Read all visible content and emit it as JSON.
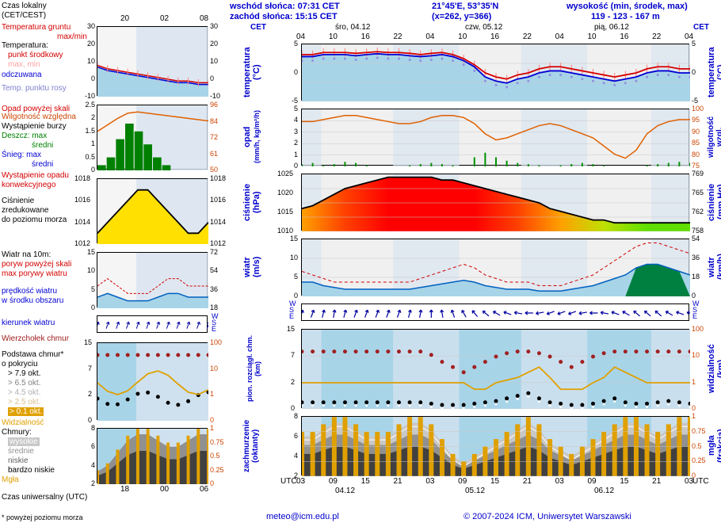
{
  "header": {
    "sunrise": "wschód słońca: 07:31 CET",
    "sunset": "zachód słońca: 15:15 CET",
    "coords": "21°45'E, 53°35'N",
    "grid": "(x=262,  y=366)",
    "elevation_label": "wysokość (min, środek, max)",
    "elevation": "119 - 123 - 167 m",
    "tz_left": "CET",
    "tz_right": "CET"
  },
  "days": {
    "d1": "śro, 04.12",
    "d2": "czw, 05.12",
    "d3": "pią, 06.12"
  },
  "day_shorts": {
    "d1": "04.12",
    "d2": "05.12",
    "d3": "06.12"
  },
  "time_ticks_main": [
    "04",
    "10",
    "16",
    "22",
    "04",
    "10",
    "16",
    "22",
    "04",
    "10",
    "16",
    "22",
    "04"
  ],
  "time_ticks_utc": [
    "03",
    "09",
    "15",
    "21",
    "03",
    "09",
    "15",
    "21",
    "03",
    "09",
    "15",
    "21",
    "03"
  ],
  "legend": {
    "czas_lokalny": "Czas lokalny",
    "cet_cest": "(CET/CEST)",
    "temp_gruntu": "Temperatura gruntu",
    "maxmin": "max/min",
    "temperatura": "Temperatura:",
    "punkt_srodkowy": "punkt środkowy",
    "max_min": "max, min",
    "odczuwana": "odczuwana",
    "temp_rosy": "Temp. punktu rosy",
    "opad_skali": "Opad powyżej skali",
    "wilgotnosc": "Wilgotność względna",
    "burza": "Wystąpienie burzy",
    "deszcz": "Deszcz:  max",
    "deszcz_sr": "średni",
    "snieg": "Śnieg:   max",
    "snieg_sr": "średni",
    "konwekcja": "Wystąpienie opadu",
    "konwekcja2": "konwekcyjnego",
    "cisnienie": "Ciśnienie",
    "zred": "zredukowane",
    "do_poziomu": "do poziomu morza",
    "wiatr10m": "Wiatr na 10m:",
    "poryw_skali": "poryw powyżej skali",
    "max_porywy": "max porywy wiatru",
    "predkosc": "prędkość wiatru",
    "w_srodku": "w środku obszaru",
    "kierunek": "kierunek wiatru",
    "wierzcholek": "Wierzchołek chmur",
    "podstawa": "Podstawa chmur*",
    "o_pokryciu": "o pokryciu",
    "p79": "> 7.9 okt.",
    "p65": "> 6.5 okt.",
    "p45": "> 4.5 okt.",
    "p25": "> 2.5 okt.",
    "p01": "> 0.1 okt.",
    "widzialnosc": "Widzialność",
    "chmury": "Chmury:",
    "wysokie": "wysokie",
    "srednie": "średnie",
    "niskie": "niskie",
    "bardzo_niskie": "bardzo niskie",
    "mgla": "Mgła",
    "czas_utc": "Czas uniwersalny (UTC)",
    "utc": "UTC",
    "utc2": "UTC",
    "note": "* powyżej poziomu morza"
  },
  "vert_labels": {
    "temp": "temperatura",
    "temp_unit": "(°C)",
    "opad": "opad",
    "opad_unit": "(mm/h, kg/m²/h)",
    "cisn": "ciśnienie",
    "cisn_unit": "(hPa)",
    "wiatr": "wiatr",
    "wiatr_unit": "(m/s)",
    "chm": "pion. rozciągł. chm.",
    "chm_unit": "(km)",
    "okt": "zachmurzenie",
    "okt_unit": "(oktanty)",
    "wilg": "wilgotność wzgl.",
    "wilg_unit": "(%)",
    "cisn2": "ciśnienie",
    "cisn2_unit": "(mm Hg)",
    "wiatr2": "wiatr",
    "wiatr2_unit": "(km/h)",
    "widz": "widzialność",
    "widz_unit": "(km)",
    "mgla": "mgła",
    "mgla_unit": "(frakcja)"
  },
  "temp_panel": {
    "yticks": [
      5,
      0,
      -5
    ],
    "top_line": [
      3.5,
      3.5,
      4,
      4,
      4,
      3.8,
      4,
      4.2,
      4,
      4,
      3.8,
      3.5,
      3.8,
      4,
      3.5,
      2.5,
      1,
      -1,
      -2,
      -2.5,
      -1.5,
      -1,
      0,
      0.5,
      0.5,
      0,
      -0.5,
      -1,
      -1.5,
      -2,
      -1.5,
      -1,
      0,
      0.5,
      0.5,
      0,
      0
    ],
    "mid_line": [
      3,
      3,
      3.5,
      3.5,
      3.5,
      3.2,
      3.5,
      3.7,
      3.5,
      3.5,
      3.2,
      3,
      3.2,
      3.5,
      3,
      2,
      0.5,
      -2,
      -3,
      -3.5,
      -2.5,
      -2,
      -1,
      -0.5,
      -0.5,
      -1,
      -1.5,
      -2,
      -2.5,
      -3,
      -2.5,
      -2,
      -1,
      -0.5,
      -0.5,
      -1,
      -1
    ],
    "dew_line": [
      2,
      2,
      2.5,
      2.5,
      2.5,
      2.2,
      2.5,
      2.7,
      2.5,
      2.5,
      2.2,
      2,
      2.2,
      2.5,
      2,
      1,
      -0.5,
      -3,
      -4,
      -4.5,
      -3.5,
      -3,
      -2,
      -1.5,
      -1.5,
      -2,
      -2.5,
      -3,
      -3.5,
      -4,
      -3.5,
      -3,
      -2,
      -1.5,
      -1.5,
      -2,
      -2
    ],
    "colors": {
      "top": "#d40000",
      "mid": "#0000d4",
      "dew": "#9090e0",
      "fill": "#a8d4e8",
      "grid": "#c0c0c0"
    }
  },
  "precip_panel": {
    "yticks_left": [
      5,
      4,
      3,
      2,
      1,
      0
    ],
    "yticks_right": [
      100,
      95,
      90,
      85,
      80,
      75
    ],
    "humidity": [
      94,
      94,
      95,
      96,
      97,
      97,
      96,
      95,
      94,
      93,
      93,
      94,
      96,
      97,
      97,
      96,
      93,
      88,
      85,
      86,
      88,
      90,
      92,
      93,
      92,
      90,
      88,
      86,
      82,
      78,
      76,
      80,
      88,
      92,
      94,
      95,
      95
    ],
    "rain_bars": [
      0.2,
      0.3,
      0.1,
      0.2,
      0.4,
      0.3,
      0.1,
      0,
      0,
      0,
      0.1,
      0.2,
      0.3,
      0.2,
      0.1,
      0,
      0.8,
      1.2,
      0.8,
      0.5,
      0.3,
      0.2,
      0.1,
      0,
      0.1,
      0.2,
      0.3,
      0.2,
      0.1,
      0,
      0,
      0,
      0.1,
      0.2,
      0.3,
      0.4,
      0.3
    ],
    "colors": {
      "humidity": "#e06000",
      "rain": "#009000"
    }
  },
  "press_panel": {
    "yticks_left": [
      1025,
      1020,
      1015,
      1010
    ],
    "yticks_right": [
      769,
      765,
      762,
      758
    ],
    "values": [
      1016,
      1017,
      1019,
      1021,
      1023,
      1024,
      1025,
      1026,
      1027,
      1027,
      1027,
      1027,
      1027,
      1026,
      1026,
      1025,
      1024,
      1023,
      1022,
      1021,
      1020,
      1019,
      1018,
      1016,
      1015,
      1014,
      1013,
      1012,
      1012,
      1011,
      1011,
      1011,
      1011,
      1011,
      1011,
      1011,
      1011
    ],
    "gradient_colors": [
      "#ffa000",
      "#ff4000",
      "#ff0000",
      "#ff0000",
      "#ff0000",
      "#ff4000",
      "#ffa000",
      "#c0e000",
      "#60e000",
      "#60e000"
    ]
  },
  "wind_panel": {
    "yticks_left": [
      15,
      10,
      5,
      0
    ],
    "yticks_right": [
      54,
      36,
      18,
      0
    ],
    "speed": [
      4,
      4,
      3,
      2.5,
      2,
      2,
      2,
      2,
      2,
      2,
      2,
      2.5,
      3,
      3.5,
      4,
      4.5,
      4,
      3,
      2.5,
      2,
      2,
      2,
      1.5,
      1.5,
      1.5,
      2,
      2.5,
      3,
      4,
      5,
      6,
      8,
      9,
      9,
      8,
      7,
      6
    ],
    "gust": [
      7,
      6,
      5,
      4,
      4,
      4,
      4,
      4,
      4,
      4,
      4,
      5,
      6,
      7,
      8,
      9,
      8,
      6,
      5,
      4,
      4,
      4,
      3,
      3,
      3,
      4,
      5,
      6,
      8,
      10,
      12,
      14,
      15,
      15,
      14,
      13,
      12
    ],
    "colors": {
      "speed": "#0060c0",
      "gust": "#d40000",
      "fill_low": "#a8d4e8",
      "fill_high": "#008040"
    }
  },
  "arrow_panel": {
    "dirs": [
      200,
      200,
      195,
      190,
      195,
      200,
      200,
      200,
      200,
      200,
      195,
      190,
      180,
      170,
      160,
      150,
      140,
      130,
      120,
      110,
      100,
      90,
      80,
      70,
      70,
      70,
      80,
      90,
      100,
      110,
      120,
      130,
      130,
      130,
      120,
      110,
      100
    ],
    "compass": {
      "W": "W",
      "S": "S",
      "E": "E"
    }
  },
  "cloud_panel": {
    "yticks_left": [
      15.0,
      7.0,
      2.0,
      0.0
    ],
    "yticks_right": [
      100,
      10,
      1,
      0
    ],
    "top_dots": [
      8.5,
      8.5,
      8.5,
      8.5,
      8.5,
      8.5,
      8.5,
      8.5,
      8.5,
      8.5,
      8.5,
      8.5,
      7.5,
      6.0,
      5.0,
      4.0,
      5.0,
      6.0,
      7.0,
      8.0,
      8.5,
      8.5,
      8.0,
      7.0,
      6.0,
      5.0,
      6.0,
      7.0,
      8.0,
      8.5,
      8.5,
      8.5,
      8.5,
      8.5,
      8.5,
      8.5,
      8.5
    ],
    "vis_line": [
      2,
      2,
      2,
      2,
      2,
      2,
      2,
      2,
      2,
      2,
      2,
      2,
      2,
      2,
      2,
      2,
      1.5,
      1.5,
      2,
      2.5,
      3,
      4,
      5,
      3,
      1.5,
      1.5,
      1.5,
      2,
      3,
      5,
      4,
      3,
      2,
      2,
      2,
      2,
      2
    ],
    "base_dots": [
      0.5,
      0.5,
      0.5,
      0.5,
      0.5,
      0.5,
      0.5,
      0.5,
      0.5,
      0.5,
      0.5,
      0.5,
      0.4,
      0.3,
      0.3,
      0.3,
      0.4,
      0.5,
      0.6,
      0.8,
      1.0,
      1.2,
      0.8,
      0.5,
      0.4,
      0.3,
      0.3,
      0.4,
      0.6,
      0.8,
      0.5,
      0.4,
      0.4,
      0.5,
      0.6,
      0.5,
      0.4
    ],
    "colors": {
      "top": "#a02020",
      "vis": "#e0a000",
      "base_black": "#000",
      "base_white": "#fff",
      "sky": "#a8d4e8"
    }
  },
  "okt_panel": {
    "yticks_left": [
      8,
      6,
      4,
      2
    ],
    "yticks_right": [
      1,
      0.75,
      0.5,
      0.25,
      0
    ],
    "bars": [
      6,
      6,
      7,
      8,
      8,
      7,
      6,
      6,
      6,
      7,
      8,
      8,
      7,
      5,
      3,
      2,
      3,
      4,
      5,
      6,
      7,
      8,
      7,
      5,
      4,
      3,
      4,
      5,
      6,
      7,
      8,
      8,
      7,
      6,
      7,
      8,
      8
    ],
    "colors": {
      "bar": "#e0a000",
      "high": "#c8c8c8",
      "mid": "#909090",
      "low": "#404040",
      "sky": "#a8d4e8"
    }
  },
  "mini_time": [
    "20",
    "02",
    "08"
  ],
  "mini_time_utc": [
    "18",
    "00",
    "06"
  ],
  "mini_temp": {
    "yticks_left": [
      30,
      20,
      10,
      0,
      -10
    ],
    "yticks_right": [
      30,
      20,
      10,
      0,
      -10
    ]
  },
  "mini_precip": {
    "yticks_left": [
      2.5,
      2.0,
      1.5,
      1.0,
      0.5,
      0.0
    ],
    "yticks_right": [
      96,
      84,
      72,
      61,
      50
    ]
  },
  "mini_press": {
    "yticks_left": [
      1018,
      1016,
      1014,
      1012
    ],
    "yticks_right": [
      1018,
      1016,
      1014,
      1012
    ]
  },
  "mini_wind": {
    "yticks_left": [
      15,
      10,
      5,
      0
    ],
    "yticks_right": [
      72,
      54,
      36,
      18
    ]
  },
  "mini_cloud": {
    "yticks_left": [
      15.0,
      7.0,
      2.0,
      0.0
    ],
    "yticks_right": [
      100,
      10,
      1,
      0
    ]
  },
  "mini_okt": {
    "yticks_left": [
      8,
      6,
      4,
      2
    ],
    "yticks_right": [
      1,
      0.75,
      0.5,
      0.25,
      0
    ]
  },
  "footer": {
    "email": "meteo@icm.edu.pl",
    "copyright": "© 2007-2024 ICM, Uniwersytet Warszawski"
  },
  "colors": {
    "blue_text": "#0000cc",
    "red_text": "#d40000",
    "orange_text": "#cc4400",
    "green_text": "#008000",
    "purple_text": "#8080d0",
    "night": "#c0d0e8"
  }
}
